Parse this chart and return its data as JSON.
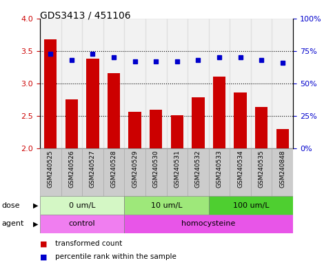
{
  "title": "GDS3413 / 451106",
  "samples": [
    "GSM240525",
    "GSM240526",
    "GSM240527",
    "GSM240528",
    "GSM240529",
    "GSM240530",
    "GSM240531",
    "GSM240532",
    "GSM240533",
    "GSM240534",
    "GSM240535",
    "GSM240848"
  ],
  "bar_values": [
    3.68,
    2.75,
    3.38,
    3.16,
    2.56,
    2.6,
    2.51,
    2.79,
    3.11,
    2.86,
    2.64,
    2.3
  ],
  "dot_values": [
    73,
    68,
    73,
    70,
    67,
    67,
    67,
    68,
    70,
    70,
    68,
    66
  ],
  "bar_color": "#cc0000",
  "dot_color": "#0000cc",
  "ylim_left": [
    2.0,
    4.0
  ],
  "ylim_right": [
    0,
    100
  ],
  "yticks_left": [
    2.0,
    2.5,
    3.0,
    3.5,
    4.0
  ],
  "yticks_right": [
    0,
    25,
    50,
    75,
    100
  ],
  "ytick_labels_right": [
    "0%",
    "25%",
    "50%",
    "75%",
    "100%"
  ],
  "hlines": [
    2.5,
    3.0,
    3.5
  ],
  "dose_groups": [
    {
      "label": "0 um/L",
      "start": 0,
      "end": 4,
      "color": "#d4f7c5"
    },
    {
      "label": "10 um/L",
      "start": 4,
      "end": 8,
      "color": "#9ee87a"
    },
    {
      "label": "100 um/L",
      "start": 8,
      "end": 12,
      "color": "#4ecf30"
    }
  ],
  "agent_groups": [
    {
      "label": "control",
      "start": 0,
      "end": 4,
      "color": "#f07ef0"
    },
    {
      "label": "homocysteine",
      "start": 4,
      "end": 12,
      "color": "#e855e8"
    }
  ],
  "legend_items": [
    {
      "label": "transformed count",
      "color": "#cc0000"
    },
    {
      "label": "percentile rank within the sample",
      "color": "#0000cc"
    }
  ],
  "tick_label_color_left": "#cc0000",
  "tick_label_color_right": "#0000cc",
  "bar_width": 0.6,
  "sample_bg_color": "#cccccc",
  "col_edge_color": "#aaaaaa",
  "dose_label": "dose",
  "agent_label": "agent",
  "arrow_char": "▶"
}
